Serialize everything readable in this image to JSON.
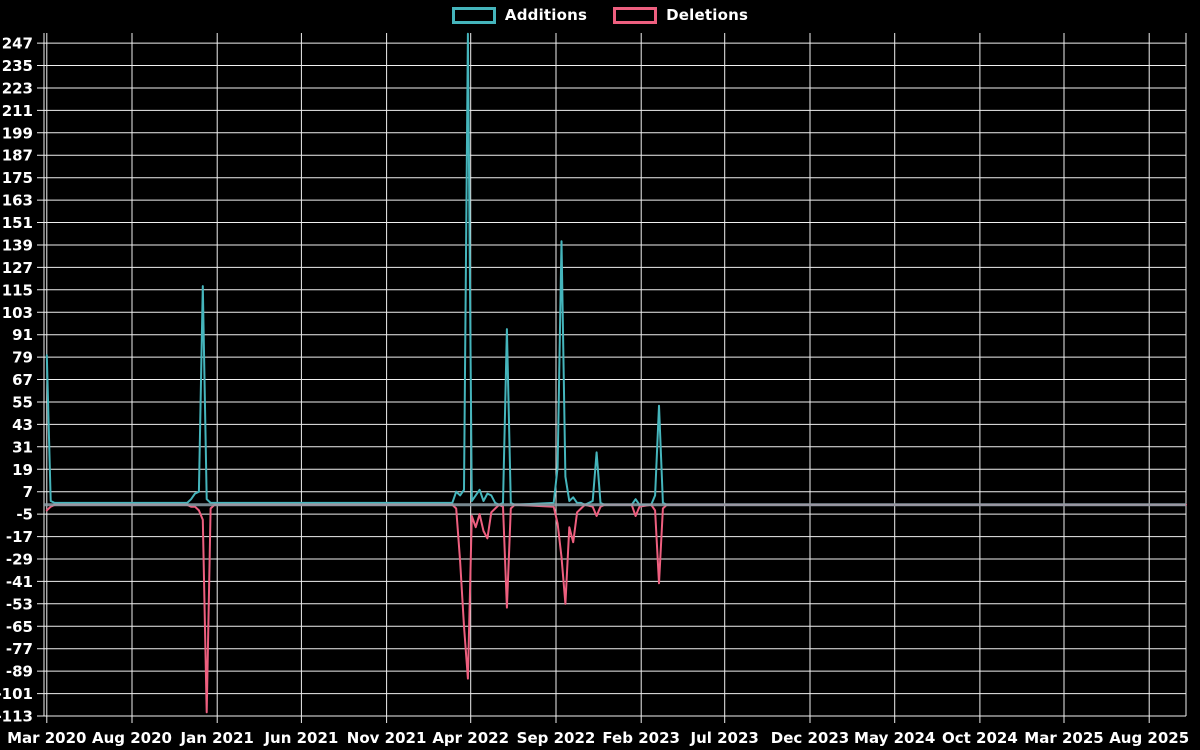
{
  "page": {
    "background": "#000000"
  },
  "legend": {
    "items": [
      {
        "label": "Additions",
        "color": "#45b5bc"
      },
      {
        "label": "Deletions",
        "color": "#ee5f7f"
      }
    ]
  },
  "chart_data": {
    "type": "line",
    "title": "",
    "xlabel": "",
    "ylabel": "",
    "background": "#000000",
    "grid_color": "#f0f0f0",
    "zero_line_color": "#8ca0a8",
    "legend_position": "top-center",
    "y_ticks": {
      "max": 247,
      "min": -113,
      "step": 12
    },
    "y_plot_range": [
      -113,
      252.4
    ],
    "x_domain": [
      "2020-02-25",
      "2025-10-06"
    ],
    "x_ticks": [
      {
        "label": "Mar 2020",
        "date": "2020-03-01"
      },
      {
        "label": "Aug 2020",
        "date": "2020-08-01"
      },
      {
        "label": "Jan 2021",
        "date": "2021-01-01"
      },
      {
        "label": "Jun 2021",
        "date": "2021-06-01"
      },
      {
        "label": "Nov 2021",
        "date": "2021-11-01"
      },
      {
        "label": "Apr 2022",
        "date": "2022-04-01"
      },
      {
        "label": "Sep 2022",
        "date": "2022-09-01"
      },
      {
        "label": "Feb 2023",
        "date": "2023-02-01"
      },
      {
        "label": "Jul 2023",
        "date": "2023-07-01"
      },
      {
        "label": "Dec 2023",
        "date": "2023-12-01"
      },
      {
        "label": "May 2024",
        "date": "2024-05-01"
      },
      {
        "label": "Oct 2024",
        "date": "2024-10-01"
      },
      {
        "label": "Mar 2025",
        "date": "2025-03-01"
      },
      {
        "label": "Aug 2025",
        "date": "2025-08-01"
      }
    ],
    "series": [
      {
        "name": "Additions",
        "color": "#45b5bc",
        "points": [
          [
            "2020-03-01",
            80
          ],
          [
            "2020-03-08",
            2
          ],
          [
            "2020-03-15",
            1
          ],
          [
            "2020-11-08",
            1
          ],
          [
            "2020-11-15",
            3
          ],
          [
            "2020-11-22",
            6
          ],
          [
            "2020-11-29",
            7
          ],
          [
            "2020-12-06",
            117
          ],
          [
            "2020-12-13",
            3
          ],
          [
            "2020-12-20",
            1
          ],
          [
            "2020-12-27",
            1
          ],
          [
            "2022-02-27",
            1
          ],
          [
            "2022-03-06",
            7
          ],
          [
            "2022-03-13",
            5
          ],
          [
            "2022-03-20",
            8
          ],
          [
            "2022-03-27",
            252
          ],
          [
            "2022-04-03",
            2
          ],
          [
            "2022-04-10",
            5
          ],
          [
            "2022-04-17",
            8
          ],
          [
            "2022-04-24",
            2
          ],
          [
            "2022-05-01",
            6
          ],
          [
            "2022-05-08",
            5
          ],
          [
            "2022-05-15",
            1
          ],
          [
            "2022-05-22",
            0
          ],
          [
            "2022-05-29",
            1
          ],
          [
            "2022-06-05",
            94
          ],
          [
            "2022-06-12",
            1
          ],
          [
            "2022-06-19",
            0
          ],
          [
            "2022-08-28",
            1
          ],
          [
            "2022-09-04",
            20
          ],
          [
            "2022-09-11",
            141
          ],
          [
            "2022-09-18",
            15
          ],
          [
            "2022-09-25",
            2
          ],
          [
            "2022-10-02",
            4
          ],
          [
            "2022-10-09",
            1
          ],
          [
            "2022-10-16",
            1
          ],
          [
            "2022-10-23",
            0
          ],
          [
            "2022-11-06",
            2
          ],
          [
            "2022-11-13",
            28
          ],
          [
            "2022-11-20",
            1
          ],
          [
            "2022-11-27",
            0
          ],
          [
            "2023-01-15",
            0
          ],
          [
            "2023-01-22",
            3
          ],
          [
            "2023-01-29",
            0
          ],
          [
            "2023-02-19",
            0
          ],
          [
            "2023-02-26",
            5
          ],
          [
            "2023-03-05",
            53
          ],
          [
            "2023-03-12",
            1
          ],
          [
            "2023-03-19",
            0
          ],
          [
            "2025-10-06",
            0
          ]
        ]
      },
      {
        "name": "Deletions",
        "color": "#ee5f7f",
        "points": [
          [
            "2020-03-01",
            -3
          ],
          [
            "2020-03-08",
            -1
          ],
          [
            "2020-03-15",
            0
          ],
          [
            "2020-11-08",
            0
          ],
          [
            "2020-11-15",
            -1
          ],
          [
            "2020-11-22",
            -1
          ],
          [
            "2020-11-29",
            -3
          ],
          [
            "2020-12-06",
            -8
          ],
          [
            "2020-12-13",
            -111
          ],
          [
            "2020-12-20",
            -2
          ],
          [
            "2020-12-27",
            0
          ],
          [
            "2022-02-27",
            0
          ],
          [
            "2022-03-06",
            -2
          ],
          [
            "2022-03-13",
            -30
          ],
          [
            "2022-03-20",
            -65
          ],
          [
            "2022-03-27",
            -93
          ],
          [
            "2022-04-03",
            -6
          ],
          [
            "2022-04-10",
            -12
          ],
          [
            "2022-04-17",
            -5
          ],
          [
            "2022-04-24",
            -14
          ],
          [
            "2022-05-01",
            -18
          ],
          [
            "2022-05-08",
            -4
          ],
          [
            "2022-05-15",
            -2
          ],
          [
            "2022-05-22",
            0
          ],
          [
            "2022-05-29",
            -1
          ],
          [
            "2022-06-05",
            -55
          ],
          [
            "2022-06-12",
            -2
          ],
          [
            "2022-06-19",
            0
          ],
          [
            "2022-08-28",
            -1
          ],
          [
            "2022-09-04",
            -10
          ],
          [
            "2022-09-11",
            -28
          ],
          [
            "2022-09-18",
            -53
          ],
          [
            "2022-09-25",
            -12
          ],
          [
            "2022-10-02",
            -20
          ],
          [
            "2022-10-09",
            -4
          ],
          [
            "2022-10-16",
            -2
          ],
          [
            "2022-10-23",
            0
          ],
          [
            "2022-11-06",
            -1
          ],
          [
            "2022-11-13",
            -6
          ],
          [
            "2022-11-20",
            -1
          ],
          [
            "2022-11-27",
            0
          ],
          [
            "2023-01-15",
            0
          ],
          [
            "2023-01-22",
            -6
          ],
          [
            "2023-01-29",
            -1
          ],
          [
            "2023-02-19",
            0
          ],
          [
            "2023-02-26",
            -3
          ],
          [
            "2023-03-05",
            -42
          ],
          [
            "2023-03-12",
            -2
          ],
          [
            "2023-03-19",
            0
          ],
          [
            "2025-10-06",
            0
          ]
        ]
      }
    ]
  }
}
